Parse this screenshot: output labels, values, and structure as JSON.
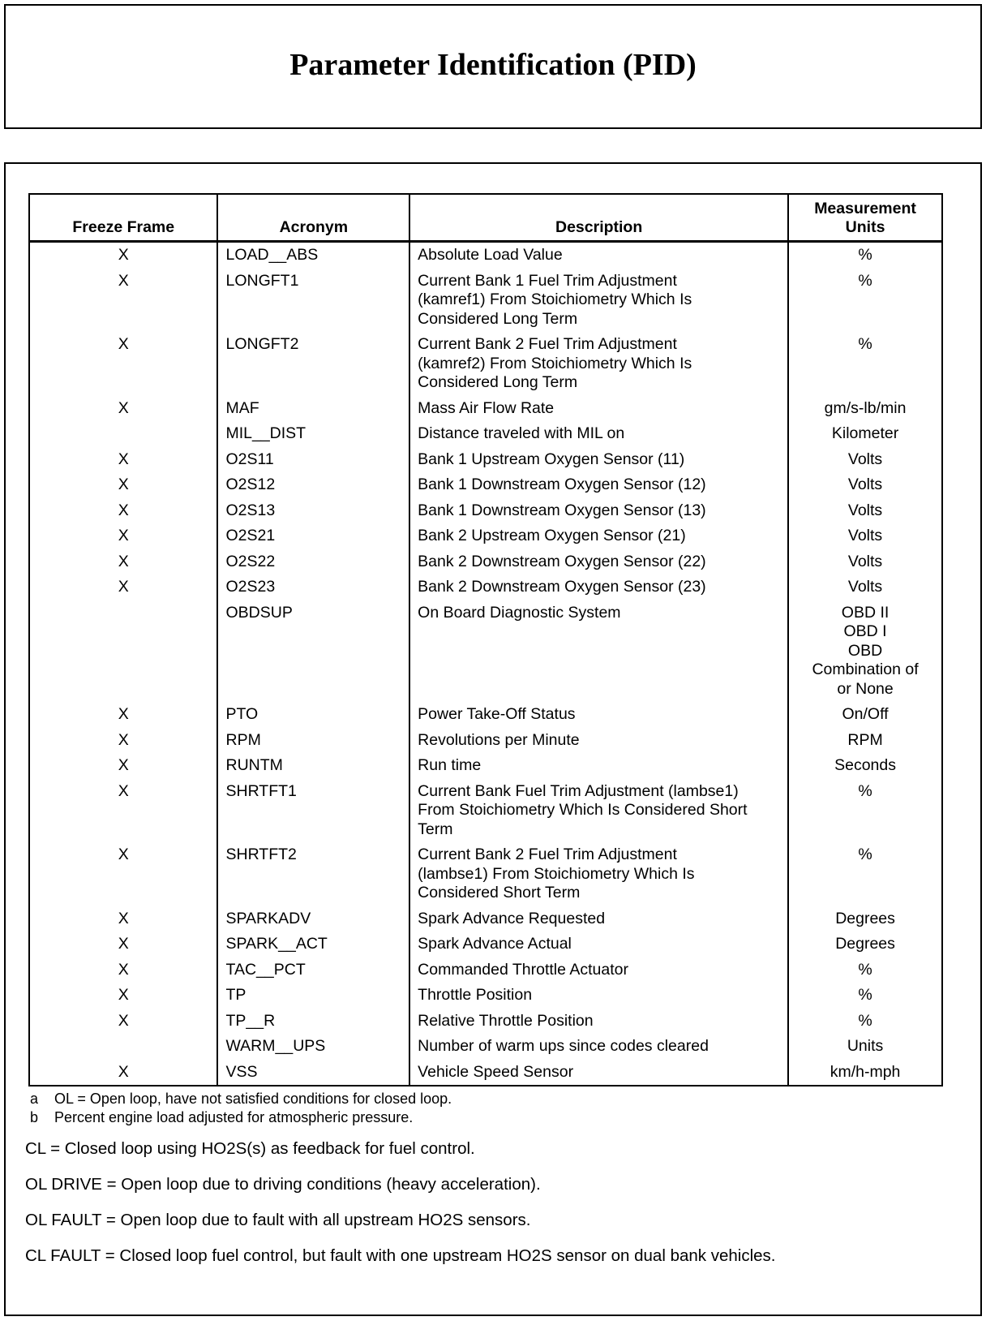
{
  "title": "Parameter Identification (PID)",
  "table": {
    "headers": [
      "Freeze Frame",
      "Acronym",
      "Description",
      "Measurement Units"
    ],
    "rows": [
      {
        "ff": "X",
        "acronym": "LOAD__ABS",
        "desc": [
          "Absolute Load Value"
        ],
        "units": [
          "%"
        ]
      },
      {
        "ff": "X",
        "acronym": "LONGFT1",
        "desc": [
          "Current Bank 1 Fuel Trim Adjustment",
          "(kamref1) From Stoichiometry Which Is",
          "Considered Long Term"
        ],
        "units": [
          "%"
        ]
      },
      {
        "ff": "X",
        "acronym": "LONGFT2",
        "desc": [
          "Current Bank 2 Fuel Trim Adjustment",
          "(kamref2) From Stoichiometry Which Is",
          "Considered Long Term"
        ],
        "units": [
          "%"
        ]
      },
      {
        "ff": "X",
        "acronym": "MAF",
        "desc": [
          "Mass Air Flow Rate"
        ],
        "units": [
          "gm/s-lb/min"
        ]
      },
      {
        "ff": "",
        "acronym": "MIL__DIST",
        "desc": [
          "Distance traveled with MIL on"
        ],
        "units": [
          "Kilometer"
        ]
      },
      {
        "ff": "X",
        "acronym": "O2S11",
        "desc": [
          "Bank 1 Upstream Oxygen Sensor (11)"
        ],
        "units": [
          "Volts"
        ]
      },
      {
        "ff": "X",
        "acronym": "O2S12",
        "desc": [
          "Bank 1 Downstream Oxygen Sensor (12)"
        ],
        "units": [
          "Volts"
        ]
      },
      {
        "ff": "X",
        "acronym": "O2S13",
        "desc": [
          "Bank 1 Downstream Oxygen Sensor (13)"
        ],
        "units": [
          "Volts"
        ]
      },
      {
        "ff": "X",
        "acronym": "O2S21",
        "desc": [
          "Bank 2 Upstream Oxygen Sensor (21)"
        ],
        "units": [
          "Volts"
        ]
      },
      {
        "ff": "X",
        "acronym": "O2S22",
        "desc": [
          "Bank 2 Downstream Oxygen Sensor (22)"
        ],
        "units": [
          "Volts"
        ]
      },
      {
        "ff": "X",
        "acronym": "O2S23",
        "desc": [
          "Bank 2 Downstream Oxygen Sensor (23)"
        ],
        "units": [
          "Volts"
        ]
      },
      {
        "ff": "",
        "acronym": "OBDSUP",
        "desc": [
          "On Board Diagnostic System"
        ],
        "units": [
          "OBD II",
          "OBD I",
          "OBD",
          "Combination of",
          "or None"
        ]
      },
      {
        "ff": "X",
        "acronym": "PTO",
        "desc": [
          "Power Take-Off Status"
        ],
        "units": [
          "On/Off"
        ]
      },
      {
        "ff": "X",
        "acronym": "RPM",
        "desc": [
          "Revolutions per Minute"
        ],
        "units": [
          "RPM"
        ]
      },
      {
        "ff": "X",
        "acronym": "RUNTM",
        "desc": [
          "Run time"
        ],
        "units": [
          "Seconds"
        ]
      },
      {
        "ff": "X",
        "acronym": "SHRTFT1",
        "desc": [
          "Current Bank Fuel Trim Adjustment (lambse1)",
          "From Stoichiometry Which Is Considered Short",
          "Term"
        ],
        "units": [
          "%"
        ]
      },
      {
        "ff": "X",
        "acronym": "SHRTFT2",
        "desc": [
          "Current Bank 2 Fuel Trim Adjustment",
          "(lambse1) From Stoichiometry Which Is",
          "Considered Short Term"
        ],
        "units": [
          "%"
        ]
      },
      {
        "ff": "X",
        "acronym": "SPARKADV",
        "desc": [
          "Spark Advance Requested"
        ],
        "units": [
          "Degrees"
        ]
      },
      {
        "ff": "X",
        "acronym": "SPARK__ACT",
        "desc": [
          "Spark Advance Actual"
        ],
        "units": [
          "Degrees"
        ]
      },
      {
        "ff": "X",
        "acronym": "TAC__PCT",
        "desc": [
          "Commanded Throttle Actuator"
        ],
        "units": [
          "%"
        ]
      },
      {
        "ff": "X",
        "acronym": "TP",
        "desc": [
          "Throttle Position"
        ],
        "units": [
          "%"
        ]
      },
      {
        "ff": "X",
        "acronym": "TP__R",
        "desc": [
          "Relative Throttle Position"
        ],
        "units": [
          "%"
        ]
      },
      {
        "ff": "",
        "acronym": "WARM__UPS",
        "desc": [
          "Number of warm ups since codes cleared"
        ],
        "units": [
          "Units"
        ]
      },
      {
        "ff": "X",
        "acronym": "VSS",
        "desc": [
          "Vehicle Speed Sensor"
        ],
        "units": [
          "km/h-mph"
        ]
      }
    ]
  },
  "footnotes": [
    {
      "key": "a",
      "text": "OL = Open loop, have not satisfied conditions for closed loop."
    },
    {
      "key": "b",
      "text": "Percent engine load adjusted for atmospheric pressure."
    }
  ],
  "definitions": [
    "CL = Closed loop using HO2S(s) as feedback for fuel control.",
    "OL DRIVE = Open loop due to driving conditions (heavy acceleration).",
    "OL FAULT = Open loop due to fault with all upstream HO2S sensors.",
    "CL FAULT = Closed loop fuel control, but fault with one upstream HO2S sensor on dual bank vehicles."
  ]
}
